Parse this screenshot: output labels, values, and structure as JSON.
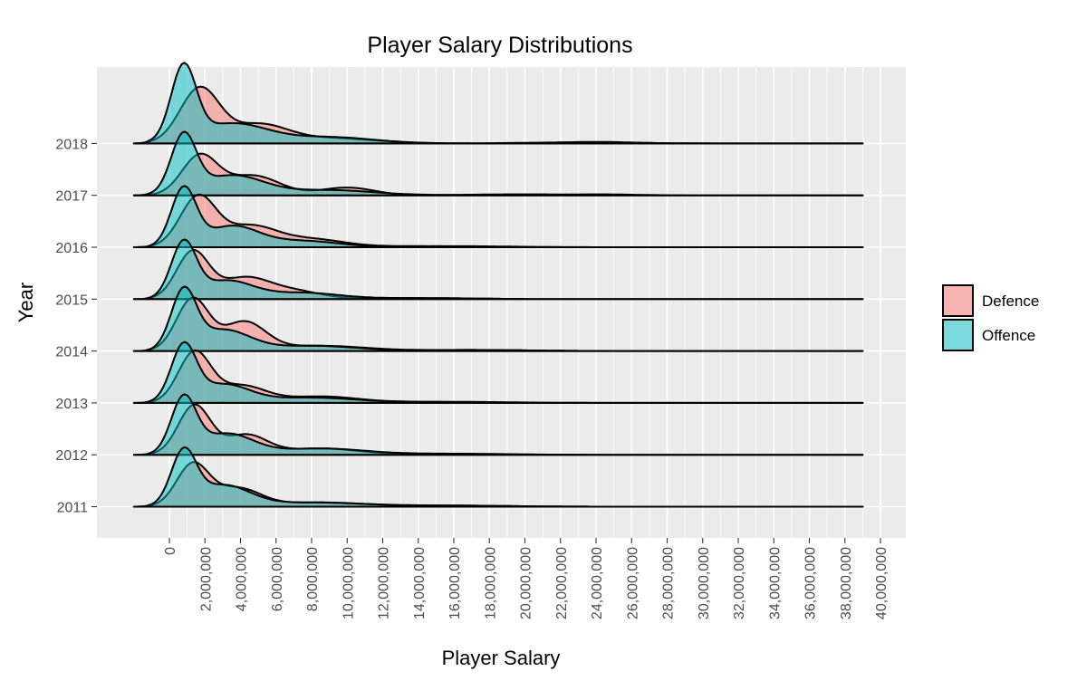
{
  "chart_data": {
    "type": "area",
    "subtype": "ridgeline-density",
    "title": "Player Salary Distributions",
    "xlabel": "Player Salary",
    "ylabel": "Year",
    "xlim": [
      -4000000,
      41000000
    ],
    "x_ticks": [
      0,
      2000000,
      4000000,
      6000000,
      8000000,
      10000000,
      12000000,
      14000000,
      16000000,
      18000000,
      20000000,
      22000000,
      24000000,
      26000000,
      28000000,
      30000000,
      32000000,
      34000000,
      36000000,
      38000000,
      40000000
    ],
    "x_tick_labels": [
      "0",
      "2,000,000",
      "4,000,000",
      "6,000,000",
      "8,000,000",
      "10,000,000",
      "12,000,000",
      "14,000,000",
      "16,000,000",
      "18,000,000",
      "20,000,000",
      "22,000,000",
      "24,000,000",
      "26,000,000",
      "28,000,000",
      "30,000,000",
      "32,000,000",
      "34,000,000",
      "36,000,000",
      "38,000,000",
      "40,000,000"
    ],
    "categories": [
      "2011",
      "2012",
      "2013",
      "2014",
      "2015",
      "2016",
      "2017",
      "2018"
    ],
    "density_range": [
      -2000000,
      39000000
    ],
    "ridge_scale_note_units": "relative density, 1 = one year spacing",
    "grid": true,
    "legend_position": "right",
    "legend_title": "",
    "series": [
      {
        "name": "Defence",
        "color": "#F8766D",
        "peaks": [
          [
            [
              1300000,
              0.8,
              900000
            ],
            [
              3800000,
              0.35,
              1300000
            ],
            [
              8500000,
              0.08,
              2500000
            ],
            [
              16000000,
              0.02,
              3000000
            ]
          ],
          [
            [
              1400000,
              0.95,
              900000
            ],
            [
              4300000,
              0.38,
              1200000
            ],
            [
              8500000,
              0.12,
              2000000
            ],
            [
              15000000,
              0.02,
              3000000
            ]
          ],
          [
            [
              1400000,
              0.95,
              900000
            ],
            [
              4000000,
              0.33,
              1400000
            ],
            [
              8500000,
              0.12,
              2000000
            ],
            [
              14000000,
              0.02,
              3000000
            ]
          ],
          [
            [
              1300000,
              1.0,
              900000
            ],
            [
              4200000,
              0.55,
              1200000
            ],
            [
              8500000,
              0.1,
              2500000
            ],
            [
              17000000,
              0.02,
              3000000
            ]
          ],
          [
            [
              1300000,
              0.9,
              900000
            ],
            [
              4200000,
              0.4,
              1400000
            ],
            [
              7000000,
              0.15,
              1500000
            ],
            [
              14000000,
              0.02,
              3000000
            ]
          ],
          [
            [
              1600000,
              0.95,
              1000000
            ],
            [
              4500000,
              0.4,
              1500000
            ],
            [
              8000000,
              0.15,
              1800000
            ],
            [
              14000000,
              0.02,
              3000000
            ]
          ],
          [
            [
              1700000,
              0.75,
              1000000
            ],
            [
              4700000,
              0.38,
              1500000
            ],
            [
              10000000,
              0.15,
              1500000
            ],
            [
              24000000,
              0.02,
              2000000
            ]
          ],
          [
            [
              1700000,
              1.05,
              1100000
            ],
            [
              5000000,
              0.35,
              1600000
            ],
            [
              9000000,
              0.1,
              2500000
            ],
            [
              23000000,
              0.02,
              3000000
            ]
          ]
        ]
      },
      {
        "name": "Offence",
        "color": "#00BFC4",
        "peaks": [
          [
            [
              800000,
              1.0,
              700000
            ],
            [
              3000000,
              0.4,
              1500000
            ],
            [
              8000000,
              0.08,
              3000000
            ],
            [
              16000000,
              0.02,
              3000000
            ]
          ],
          [
            [
              800000,
              1.05,
              700000
            ],
            [
              3200000,
              0.4,
              1500000
            ],
            [
              8500000,
              0.12,
              2500000
            ],
            [
              16000000,
              0.02,
              3000000
            ]
          ],
          [
            [
              800000,
              1.05,
              700000
            ],
            [
              3000000,
              0.35,
              1500000
            ],
            [
              8000000,
              0.1,
              2500000
            ],
            [
              16000000,
              0.02,
              3000000
            ]
          ],
          [
            [
              800000,
              1.1,
              700000
            ],
            [
              3000000,
              0.4,
              1500000
            ],
            [
              8000000,
              0.1,
              2500000
            ],
            [
              17000000,
              0.02,
              3000000
            ]
          ],
          [
            [
              800000,
              1.05,
              700000
            ],
            [
              3200000,
              0.35,
              1500000
            ],
            [
              7500000,
              0.12,
              2000000
            ],
            [
              14000000,
              0.02,
              3000000
            ]
          ],
          [
            [
              800000,
              1.1,
              700000
            ],
            [
              3500000,
              0.4,
              1500000
            ],
            [
              7500000,
              0.12,
              2000000
            ],
            [
              16000000,
              0.02,
              3000000
            ]
          ],
          [
            [
              800000,
              1.1,
              700000
            ],
            [
              3500000,
              0.38,
              1800000
            ],
            [
              9000000,
              0.1,
              2500000
            ],
            [
              20000000,
              0.02,
              3000000
            ]
          ],
          [
            [
              800000,
              1.4,
              700000
            ],
            [
              3500000,
              0.38,
              2000000
            ],
            [
              9000000,
              0.12,
              2500000
            ],
            [
              24000000,
              0.03,
              2000000
            ]
          ]
        ]
      }
    ]
  }
}
